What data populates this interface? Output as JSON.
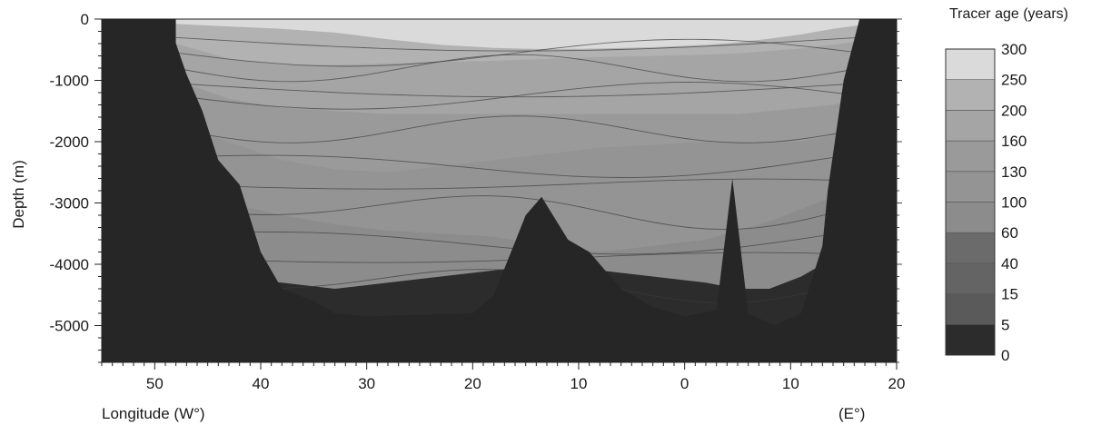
{
  "chart_data": {
    "type": "heatmap",
    "title": "",
    "xlabel": "Longitude (W°)",
    "xlabel_right": "(E°)",
    "ylabel": "Depth (m)",
    "xlim": [
      55,
      -20
    ],
    "ylim": [
      -5600,
      0
    ],
    "x_ticks": [
      {
        "value": 50,
        "label": "50"
      },
      {
        "value": 40,
        "label": "40"
      },
      {
        "value": 30,
        "label": "30"
      },
      {
        "value": 20,
        "label": "20"
      },
      {
        "value": 10,
        "label": "10"
      },
      {
        "value": 0,
        "label": "0"
      },
      {
        "value": -10,
        "label": "10"
      },
      {
        "value": -20,
        "label": "20"
      }
    ],
    "y_ticks": [
      {
        "value": 0,
        "label": "0"
      },
      {
        "value": -1000,
        "label": "-1000"
      },
      {
        "value": -2000,
        "label": "-2000"
      },
      {
        "value": -3000,
        "label": "-3000"
      },
      {
        "value": -4000,
        "label": "-4000"
      },
      {
        "value": -5000,
        "label": "-5000"
      }
    ],
    "colorbar": {
      "title": "Tracer age (years)",
      "levels": [
        "0",
        "5",
        "15",
        "40",
        "60",
        "100",
        "130",
        "160",
        "200",
        "250",
        "300"
      ],
      "colors": [
        "#2c2c2c",
        "#5a5a5a",
        "#646464",
        "#6b6b6b",
        "#8c8c8c",
        "#949494",
        "#9a9a9a",
        "#a5a5a5",
        "#b2b2b2",
        "#dadada"
      ]
    },
    "seafloor": [
      [
        48.5,
        0
      ],
      [
        48,
        -400
      ],
      [
        47,
        -900
      ],
      [
        45.5,
        -1500
      ],
      [
        44,
        -2300
      ],
      [
        42,
        -2700
      ],
      [
        40,
        -3800
      ],
      [
        38,
        -4400
      ],
      [
        35,
        -4600
      ],
      [
        33,
        -4800
      ],
      [
        30,
        -4850
      ],
      [
        20,
        -4800
      ],
      [
        18,
        -4500
      ],
      [
        15,
        -3200
      ],
      [
        13.5,
        -2900
      ],
      [
        11,
        -3600
      ],
      [
        9,
        -3800
      ],
      [
        6,
        -4400
      ],
      [
        3,
        -4700
      ],
      [
        0,
        -4850
      ],
      [
        -3,
        -4750
      ],
      [
        -4.5,
        -2600
      ],
      [
        -6,
        -4800
      ],
      [
        -8.5,
        -5000
      ],
      [
        -11,
        -4800
      ],
      [
        -13,
        -3700
      ],
      [
        -13.5,
        -2800
      ],
      [
        -15,
        -1000
      ],
      [
        -16.5,
        0
      ]
    ],
    "layers": [
      {
        "age": 0,
        "depth": [
          -5600,
          -5600,
          -5600,
          -5600,
          -5600,
          -5600,
          -5600,
          -5600,
          -5600,
          -5600,
          -5600,
          -5600,
          -5600,
          -5600,
          -5600,
          -5600
        ]
      },
      {
        "age": 60,
        "depth": [
          -4000,
          -4200,
          -4300,
          -4400,
          -4300,
          -4200,
          -4100,
          -4000,
          -4100,
          -4200,
          -4300,
          -4400,
          -4400,
          -4200,
          -3900,
          -3800
        ]
      },
      {
        "age": 100,
        "depth": [
          -2600,
          -3000,
          -3200,
          -3350,
          -3450,
          -3500,
          -3550,
          -3700,
          -3800,
          -3700,
          -3600,
          -3450,
          -3300,
          -3100,
          -2900,
          -2600
        ]
      },
      {
        "age": 130,
        "depth": [
          -1700,
          -2000,
          -2300,
          -2450,
          -2500,
          -2400,
          -2300,
          -2200,
          -2100,
          -2050,
          -2000,
          -2000,
          -2000,
          -2000,
          -1900,
          -1800
        ]
      },
      {
        "age": 160,
        "depth": [
          -1000,
          -1300,
          -1450,
          -1500,
          -1550,
          -1550,
          -1550,
          -1550,
          -1550,
          -1550,
          -1550,
          -1550,
          -1500,
          -1450,
          -1400,
          -1300
        ]
      },
      {
        "age": 200,
        "depth": [
          -400,
          -650,
          -750,
          -750,
          -720,
          -700,
          -680,
          -650,
          -620,
          -600,
          -580,
          -560,
          -520,
          -480,
          -420,
          -360
        ]
      },
      {
        "age": 250,
        "depth": [
          -80,
          -120,
          -160,
          -220,
          -330,
          -420,
          -470,
          -490,
          -480,
          -460,
          -420,
          -380,
          -320,
          -250,
          -160,
          -100
        ]
      }
    ],
    "layer_x": [
      48,
      43,
      38,
      33,
      28,
      23,
      18,
      13,
      8,
      3,
      -2,
      -5,
      -8,
      -11,
      -14,
      -16.5
    ],
    "contour_depths": [
      -300,
      -550,
      -800,
      -1050,
      -1250,
      -1800,
      -2250,
      -2700,
      -3100,
      -3500,
      -3900,
      -4300
    ]
  }
}
